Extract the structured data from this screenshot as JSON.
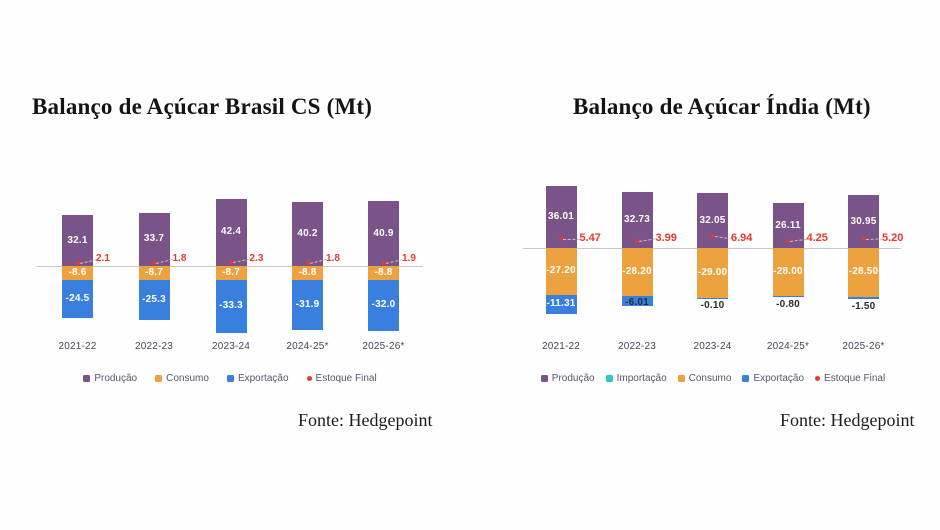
{
  "colors": {
    "producao": "#7a5389",
    "importacao": "#2ec6cd",
    "consumo": "#eca23e",
    "exportacao": "#3980de",
    "estoque": "#e8392e",
    "axis_line": "#c8c8cc",
    "bar_label": "#ffffff",
    "outside_label": "#2a2a32",
    "x_label": "#45455c",
    "legend_text": "#565670",
    "title": "#141414"
  },
  "chart_data": [
    {
      "id": "brasil",
      "type": "bar",
      "title": "Balanço de Açúcar Brasil CS (Mt)",
      "source": "Fonte: Hedgepoint",
      "categories": [
        "2021-22",
        "2022-23",
        "2023-24",
        "2024-25*",
        "2025-26*"
      ],
      "grid": false,
      "zero_line": true,
      "legend_position": "bottom",
      "series": [
        {
          "name": "Produção",
          "color_key": "producao",
          "values": [
            32.1,
            33.7,
            42.4,
            40.2,
            40.9
          ],
          "labels": [
            "32.1",
            "33.7",
            "42.4",
            "40.2",
            "40.9"
          ],
          "label_inside": [
            true,
            true,
            true,
            true,
            true
          ]
        },
        {
          "name": "Consumo",
          "color_key": "consumo",
          "values": [
            -8.6,
            -8.7,
            -8.7,
            -8.8,
            -8.8
          ],
          "labels": [
            "-8.6",
            "-8.7",
            "-8.7",
            "-8.8",
            "-8.8"
          ],
          "label_inside": [
            true,
            true,
            true,
            true,
            true
          ]
        },
        {
          "name": "Exportação",
          "color_key": "exportacao",
          "values": [
            -24.5,
            -25.3,
            -33.3,
            -31.9,
            -32.0
          ],
          "labels": [
            "-24.5",
            "-25.3",
            "-33.3",
            "-31.9",
            "-32.0"
          ],
          "label_inside": [
            true,
            true,
            true,
            true,
            true
          ]
        }
      ],
      "point_series": {
        "name": "Estoque Final",
        "color_key": "estoque",
        "values": [
          2.1,
          1.8,
          2.3,
          1.8,
          1.9
        ],
        "labels": [
          "2.1",
          "1.8",
          "2.3",
          "1.8",
          "1.9"
        ]
      },
      "legend": [
        {
          "label": "Produção",
          "color_key": "producao",
          "marker": "square"
        },
        {
          "label": "Consumo",
          "color_key": "consumo",
          "marker": "square"
        },
        {
          "label": "Exportação",
          "color_key": "exportacao",
          "marker": "square"
        },
        {
          "label": "Estoque Final",
          "color_key": "estoque",
          "marker": "dot"
        }
      ]
    },
    {
      "id": "india",
      "type": "bar",
      "title": "Balanço de Açúcar Índia (Mt)",
      "source": "Fonte: Hedgepoint",
      "categories": [
        "2021-22",
        "2022-23",
        "2023-24",
        "2024-25*",
        "2025-26*"
      ],
      "grid": false,
      "zero_line": true,
      "legend_position": "bottom",
      "series": [
        {
          "name": "Produção",
          "color_key": "producao",
          "values": [
            36.01,
            32.73,
            32.05,
            26.11,
            30.95
          ],
          "labels": [
            "36.01",
            "32.73",
            "32.05",
            "26.11",
            "30.95"
          ],
          "label_inside": [
            true,
            true,
            true,
            true,
            true
          ]
        },
        {
          "name": "Consumo",
          "color_key": "consumo",
          "values": [
            -27.2,
            -28.2,
            -29.0,
            -28.0,
            -28.5
          ],
          "labels": [
            "-27.20",
            "-28.20",
            "-29.00",
            "-28.00",
            "-28.50"
          ],
          "label_inside": [
            true,
            true,
            true,
            true,
            true
          ]
        },
        {
          "name": "Exportação",
          "color_key": "exportacao",
          "values": [
            -11.31,
            -6.01,
            -0.1,
            -0.8,
            -1.5
          ],
          "labels": [
            "-11.31",
            "-6.01",
            "-0.10",
            "-0.80",
            "-1.50"
          ],
          "label_inside": [
            true,
            false,
            false,
            false,
            false
          ]
        }
      ],
      "point_series": {
        "name": "Estoque Final",
        "color_key": "estoque",
        "values": [
          5.47,
          3.99,
          6.94,
          4.25,
          5.2
        ],
        "labels": [
          "5.47",
          "3.99",
          "6.94",
          "4.25",
          "5.20"
        ]
      },
      "legend": [
        {
          "label": "Produção",
          "color_key": "producao",
          "marker": "square"
        },
        {
          "label": "Importação",
          "color_key": "importacao",
          "marker": "square"
        },
        {
          "label": "Consumo",
          "color_key": "consumo",
          "marker": "square"
        },
        {
          "label": "Exportação",
          "color_key": "exportacao",
          "marker": "square"
        },
        {
          "label": "Estoque Final",
          "color_key": "estoque",
          "marker": "dot"
        }
      ]
    }
  ]
}
